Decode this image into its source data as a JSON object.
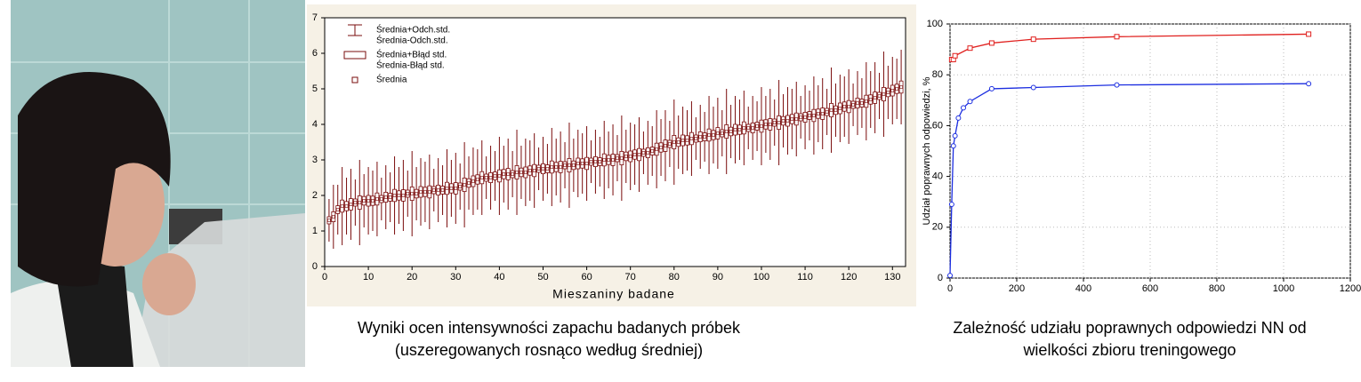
{
  "chart_data": [
    {
      "type": "box",
      "xlabel": "Mieszaniny badane",
      "caption": [
        "Wyniki ocen intensywności zapachu badanych próbek",
        "(uszeregowanych rosnąco według średniej)"
      ],
      "legend": [
        "Średnia+Odch.std.",
        "Średnia-Odch.std.",
        "Średnia+Błąd std.",
        "Średnia-Błąd std.",
        "Średnia"
      ],
      "color": "#7a0c0c",
      "xlim": [
        0,
        133
      ],
      "xticks": [
        0,
        10,
        20,
        30,
        40,
        50,
        60,
        70,
        80,
        90,
        100,
        110,
        120,
        130
      ],
      "ylim": [
        0,
        7
      ],
      "yticks": [
        0,
        1,
        2,
        3,
        4,
        5,
        6,
        7
      ],
      "x": [
        1,
        2,
        3,
        4,
        5,
        6,
        7,
        8,
        9,
        10,
        11,
        12,
        13,
        14,
        15,
        16,
        17,
        18,
        19,
        20,
        21,
        22,
        23,
        24,
        25,
        26,
        27,
        28,
        29,
        30,
        31,
        32,
        33,
        34,
        35,
        36,
        37,
        38,
        39,
        40,
        41,
        42,
        43,
        44,
        45,
        46,
        47,
        48,
        49,
        50,
        51,
        52,
        53,
        54,
        55,
        56,
        57,
        58,
        59,
        60,
        61,
        62,
        63,
        64,
        65,
        66,
        67,
        68,
        69,
        70,
        71,
        72,
        73,
        74,
        75,
        76,
        77,
        78,
        79,
        80,
        81,
        82,
        83,
        84,
        85,
        86,
        87,
        88,
        89,
        90,
        91,
        92,
        93,
        94,
        95,
        96,
        97,
        98,
        99,
        100,
        101,
        102,
        103,
        104,
        105,
        106,
        107,
        108,
        109,
        110,
        111,
        112,
        113,
        114,
        115,
        116,
        117,
        118,
        119,
        120,
        121,
        122,
        123,
        124,
        125,
        126,
        127,
        128,
        129,
        130,
        131,
        132
      ],
      "values": [
        1.3,
        1.4,
        1.6,
        1.7,
        1.7,
        1.75,
        1.8,
        1.8,
        1.85,
        1.85,
        1.85,
        1.9,
        1.9,
        1.95,
        1.95,
        2.0,
        2.0,
        2.0,
        2.05,
        2.05,
        2.05,
        2.1,
        2.1,
        2.1,
        2.15,
        2.15,
        2.15,
        2.2,
        2.2,
        2.2,
        2.25,
        2.3,
        2.35,
        2.4,
        2.45,
        2.5,
        2.5,
        2.5,
        2.55,
        2.55,
        2.6,
        2.6,
        2.6,
        2.65,
        2.65,
        2.65,
        2.7,
        2.7,
        2.75,
        2.75,
        2.75,
        2.8,
        2.8,
        2.8,
        2.85,
        2.85,
        2.85,
        2.9,
        2.9,
        2.9,
        2.95,
        2.95,
        2.95,
        3.0,
        3.0,
        3.0,
        3.05,
        3.05,
        3.1,
        3.1,
        3.15,
        3.15,
        3.2,
        3.2,
        3.25,
        3.3,
        3.35,
        3.4,
        3.45,
        3.5,
        3.5,
        3.55,
        3.55,
        3.6,
        3.6,
        3.65,
        3.65,
        3.7,
        3.7,
        3.75,
        3.75,
        3.8,
        3.8,
        3.85,
        3.85,
        3.9,
        3.9,
        3.9,
        3.95,
        3.95,
        4.0,
        4.0,
        4.05,
        4.05,
        4.1,
        4.1,
        4.15,
        4.15,
        4.2,
        4.2,
        4.25,
        4.25,
        4.3,
        4.3,
        4.35,
        4.4,
        4.4,
        4.45,
        4.5,
        4.5,
        4.55,
        4.6,
        4.6,
        4.65,
        4.7,
        4.75,
        4.8,
        4.85,
        4.9,
        4.95,
        5.0,
        5.05
      ],
      "sd": [
        0.6,
        0.9,
        0.7,
        1.1,
        0.8,
        1.0,
        0.65,
        1.2,
        0.75,
        0.95,
        0.85,
        1.05,
        0.6,
        0.9,
        0.7,
        1.1,
        0.8,
        1.0,
        0.65,
        1.2,
        0.75,
        0.95,
        0.85,
        1.05,
        0.6,
        0.9,
        0.7,
        1.1,
        0.8,
        1.0,
        0.65,
        1.2,
        0.75,
        0.95,
        0.85,
        1.05,
        0.6,
        0.9,
        0.7,
        1.1,
        0.8,
        1.0,
        0.65,
        1.2,
        0.75,
        0.95,
        0.85,
        1.05,
        0.6,
        0.9,
        0.7,
        1.1,
        0.8,
        1.0,
        0.65,
        1.2,
        0.75,
        0.95,
        0.85,
        1.05,
        0.6,
        0.9,
        0.7,
        1.1,
        0.8,
        1.0,
        0.65,
        1.2,
        0.75,
        0.95,
        0.85,
        1.05,
        0.6,
        0.9,
        0.7,
        1.1,
        0.8,
        1.0,
        0.65,
        1.2,
        0.75,
        0.95,
        0.85,
        1.05,
        0.6,
        0.9,
        0.7,
        1.1,
        0.8,
        1.0,
        0.65,
        1.2,
        0.75,
        0.95,
        0.85,
        1.05,
        0.6,
        0.9,
        0.7,
        1.1,
        0.8,
        1.0,
        0.65,
        1.2,
        0.75,
        0.95,
        0.85,
        1.05,
        0.6,
        0.9,
        0.7,
        1.1,
        0.8,
        1.0,
        0.65,
        1.2,
        0.75,
        0.95,
        0.85,
        1.05,
        0.6,
        0.9,
        0.7,
        1.1,
        0.8,
        1.0,
        0.65,
        1.2,
        0.75,
        0.95,
        0.85,
        1.05
      ],
      "se": [
        0.1,
        0.14,
        0.11,
        0.17,
        0.13,
        0.16,
        0.1,
        0.19,
        0.12,
        0.15,
        0.13,
        0.17,
        0.1,
        0.14,
        0.11,
        0.17,
        0.13,
        0.16,
        0.1,
        0.19,
        0.12,
        0.15,
        0.13,
        0.17,
        0.1,
        0.14,
        0.11,
        0.17,
        0.13,
        0.16,
        0.1,
        0.19,
        0.12,
        0.15,
        0.13,
        0.17,
        0.1,
        0.14,
        0.11,
        0.17,
        0.13,
        0.16,
        0.1,
        0.19,
        0.12,
        0.15,
        0.13,
        0.17,
        0.1,
        0.14,
        0.11,
        0.17,
        0.13,
        0.16,
        0.1,
        0.19,
        0.12,
        0.15,
        0.13,
        0.17,
        0.1,
        0.14,
        0.11,
        0.17,
        0.13,
        0.16,
        0.1,
        0.19,
        0.12,
        0.15,
        0.13,
        0.17,
        0.1,
        0.14,
        0.11,
        0.17,
        0.13,
        0.16,
        0.1,
        0.19,
        0.12,
        0.15,
        0.13,
        0.17,
        0.1,
        0.14,
        0.11,
        0.17,
        0.13,
        0.16,
        0.1,
        0.19,
        0.12,
        0.15,
        0.13,
        0.17,
        0.1,
        0.14,
        0.11,
        0.17,
        0.13,
        0.16,
        0.1,
        0.19,
        0.12,
        0.15,
        0.13,
        0.17,
        0.1,
        0.14,
        0.11,
        0.17,
        0.13,
        0.16,
        0.1,
        0.19,
        0.12,
        0.15,
        0.13,
        0.17,
        0.1,
        0.14,
        0.11,
        0.17,
        0.13,
        0.16,
        0.1,
        0.19,
        0.12,
        0.15,
        0.13,
        0.17
      ]
    },
    {
      "type": "line",
      "ylabel": "Udział poprawnych odpowiedzi, %",
      "caption": [
        "Zależność udziału poprawnych odpowiedzi  NN od",
        "wielkości zbioru treningowego"
      ],
      "xlim": [
        0,
        1200
      ],
      "xticks": [
        0,
        200,
        400,
        600,
        800,
        1000,
        1200
      ],
      "ylim": [
        0,
        100
      ],
      "yticks": [
        0,
        20,
        40,
        60,
        80,
        100
      ],
      "grid": true,
      "series": [
        {
          "color": "#e0201e",
          "marker": "square",
          "x": [
            5,
            10,
            15,
            60,
            125,
            250,
            500,
            1075
          ],
          "values": [
            86,
            86,
            87.5,
            90.5,
            92.5,
            94,
            95,
            96
          ]
        },
        {
          "color": "#1c2ee0",
          "marker": "circle",
          "x": [
            0,
            5,
            10,
            15,
            25,
            40,
            60,
            125,
            250,
            500,
            1075
          ],
          "values": [
            1,
            29,
            52,
            56,
            63,
            67,
            69.5,
            74.5,
            75,
            76,
            76.5
          ]
        }
      ]
    }
  ]
}
